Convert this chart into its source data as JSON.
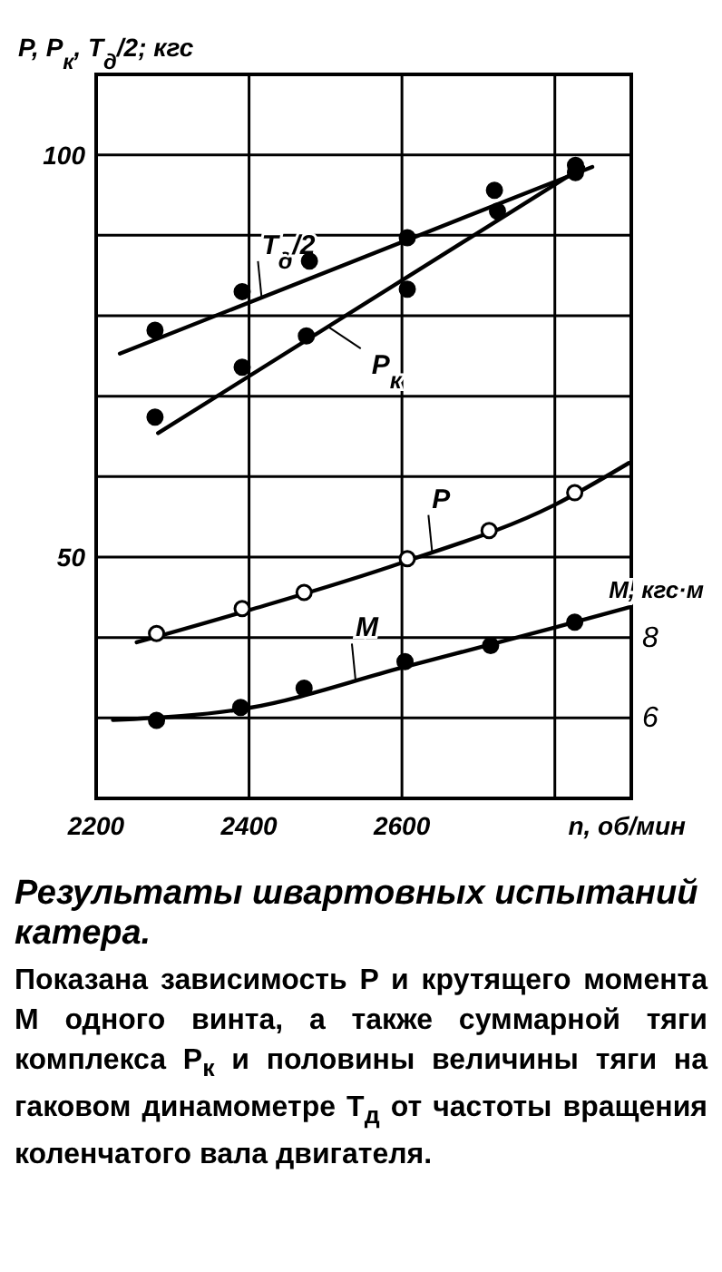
{
  "chart_data": {
    "type": "scatter",
    "title": "Результаты швартовных испытаний катера.",
    "annotations": [
      "Показана зависимость P и крутящего момента M одного винта, а также суммарной тяги комплекса P$_{к}$ и половины величины тяги на гаковом динамометре T$_{д}$ от частоты вращения коленчатого вала двигателя."
    ],
    "xlabel": "n, об/мин",
    "ylabel": "P, P$_{к}$, T$_{д}$/2; кгс",
    "y2label": "M, кгс·м",
    "xlim": [
      2200,
      2900
    ],
    "xticks": [
      2200,
      2400,
      2600,
      {
        "value": 2800,
        "label": null
      }
    ],
    "ylim": [
      20,
      110
    ],
    "yticks": [
      {
        "value": 30,
        "label": null
      },
      {
        "value": 40,
        "label": null
      },
      50,
      {
        "value": 60,
        "label": null
      },
      {
        "value": 70,
        "label": null
      },
      {
        "value": 80,
        "label": null
      },
      {
        "value": 90,
        "label": null
      },
      100
    ],
    "y2lim": [
      4,
      22
    ],
    "y2ticks": [
      6,
      8
    ],
    "grid": true,
    "marker": "circle",
    "series": [
      {
        "name": "T$_{д}$/2",
        "type": "line",
        "marker": "none",
        "color": "#000000",
        "x": [
          2231,
          2849
        ],
        "values": [
          75.3,
          98.5
        ]
      },
      {
        "name": "P$_{к}$",
        "type": "line",
        "marker": "none",
        "color": "#000000",
        "x": [
          2281,
          2837
        ],
        "values": [
          65.4,
          98.5
        ]
      },
      {
        "name": "P",
        "type": "line",
        "marker": "none",
        "color": "#000000",
        "x": [
          2253,
          2400,
          2600,
          2800,
          2897
        ],
        "values": [
          39.4,
          43.4,
          49.3,
          56.5,
          61.7
        ]
      },
      {
        "name": "M",
        "type": "line",
        "marker": "none",
        "axis": "y2",
        "color": "#000000",
        "x": [
          2222,
          2400,
          2600,
          2800,
          2897
        ],
        "values": [
          5.95,
          6.25,
          7.25,
          8.25,
          8.75
        ]
      },
      {
        "type": "scatter",
        "color": "#000000",
        "x": [
          2277,
          2391,
          2479,
          2607,
          2721,
          2827
        ],
        "values": [
          78.2,
          83.0,
          86.8,
          89.7,
          95.6,
          98.7
        ]
      },
      {
        "type": "scatter",
        "color": "#000000",
        "x": [
          2277,
          2391,
          2475,
          2607,
          2725,
          2827
        ],
        "values": [
          67.4,
          73.6,
          77.5,
          83.3,
          93.0,
          97.8
        ]
      },
      {
        "type": "scatter",
        "color": "#ffffff",
        "x": [
          2279,
          2391,
          2472,
          2607,
          2714,
          2826
        ],
        "values": [
          40.5,
          43.6,
          45.6,
          49.8,
          53.3,
          58.0
        ]
      },
      {
        "type": "scatter",
        "axis": "y2",
        "color": "#000000",
        "x": [
          2279,
          2389,
          2472,
          2604,
          2716,
          2826
        ],
        "values": [
          5.94,
          6.26,
          6.74,
          7.4,
          7.8,
          8.38
        ]
      }
    ]
  }
}
